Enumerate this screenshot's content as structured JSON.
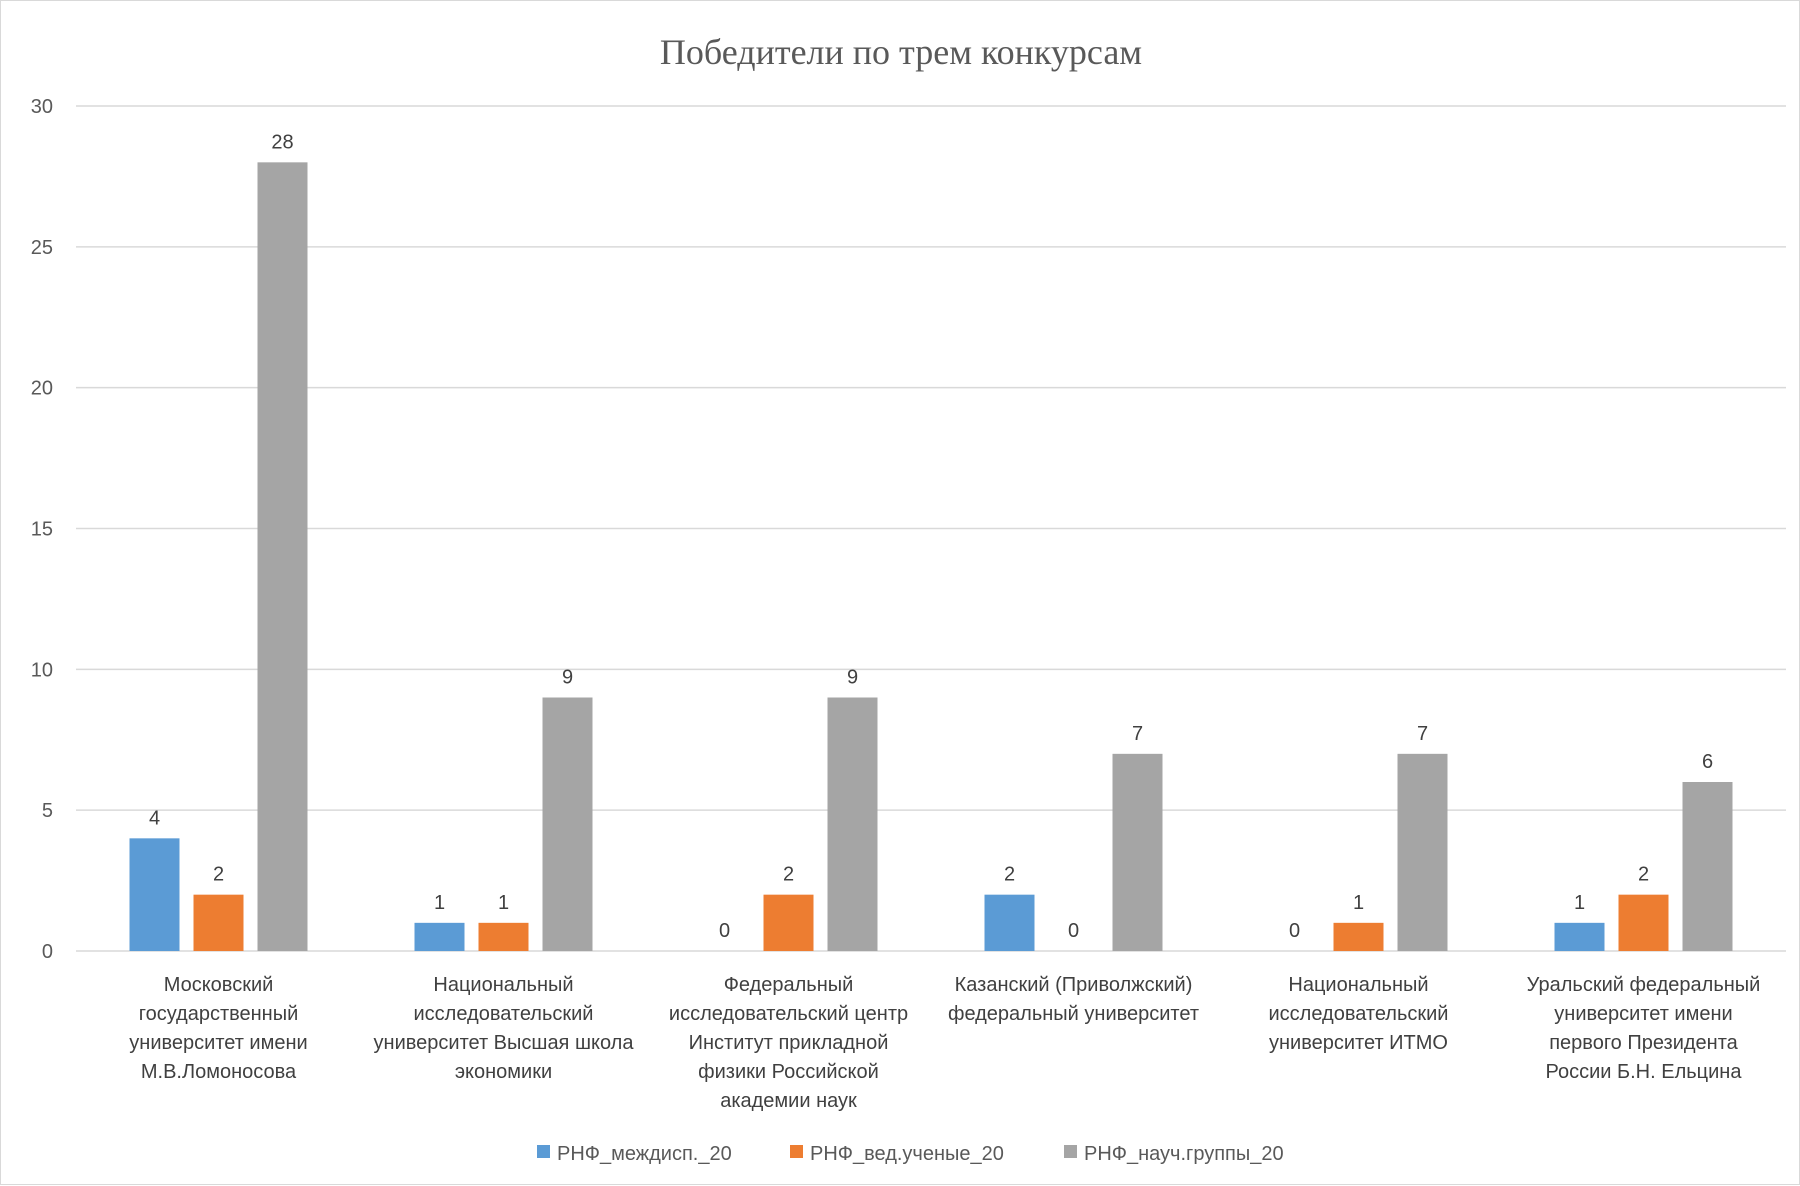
{
  "chart_data": {
    "type": "bar",
    "title": "Победители по трем конкурсам",
    "xlabel": "",
    "ylabel": "",
    "ylim": [
      0,
      30
    ],
    "yticks": [
      0,
      5,
      10,
      15,
      20,
      25,
      30
    ],
    "grid": true,
    "legend_position": "bottom",
    "categories": [
      [
        "Московский",
        "государственный",
        "университет имени",
        "М.В.Ломоносова"
      ],
      [
        "Национальный",
        "исследовательский",
        "университет Высшая школа",
        "экономики"
      ],
      [
        "Федеральный",
        "исследовательский центр",
        "Институт прикладной",
        "физики Российской",
        "академии наук"
      ],
      [
        "Казанский (Приволжский)",
        "федеральный университет"
      ],
      [
        "Национальный",
        "исследовательский",
        "университет ИТМО"
      ],
      [
        "Уральский федеральный",
        "университет имени",
        "первого Президента",
        "России Б.Н. Ельцина"
      ]
    ],
    "series": [
      {
        "name": "РНФ_междисп._20",
        "color": "#5b9bd5",
        "values": [
          4,
          1,
          0,
          2,
          0,
          1
        ]
      },
      {
        "name": "РНФ_вед.ученые_20",
        "color": "#ed7d31",
        "values": [
          2,
          1,
          2,
          0,
          1,
          2
        ]
      },
      {
        "name": "РНФ_науч.группы_20",
        "color": "#a5a5a5",
        "values": [
          28,
          9,
          9,
          7,
          7,
          6
        ]
      }
    ]
  }
}
